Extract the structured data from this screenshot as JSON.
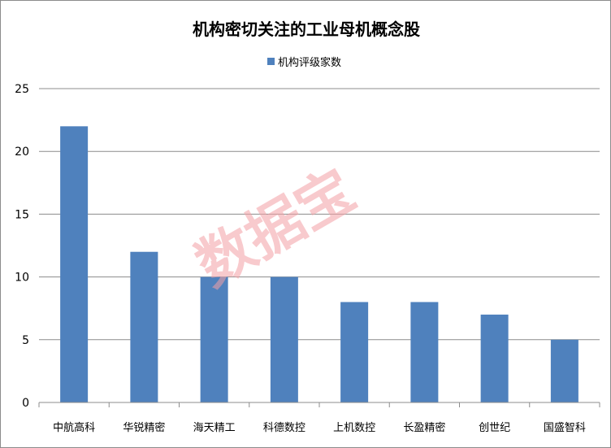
{
  "chart_data": {
    "type": "bar",
    "title": "机构密切关注的工业母机概念股",
    "categories": [
      "中航高科",
      "华锐精密",
      "海天精工",
      "科德数控",
      "上机数控",
      "长盈精密",
      "创世纪",
      "国盛智科"
    ],
    "series": [
      {
        "name": "机构评级家数",
        "values": [
          22,
          12,
          10,
          10,
          8,
          8,
          7,
          5
        ],
        "color": "#4f81bd"
      }
    ],
    "ylim": [
      0,
      25
    ],
    "yticks": [
      0,
      5,
      10,
      15,
      20,
      25
    ],
    "grid": true,
    "legend": "top",
    "xlabel": "",
    "ylabel": ""
  },
  "watermark": "数据宝"
}
